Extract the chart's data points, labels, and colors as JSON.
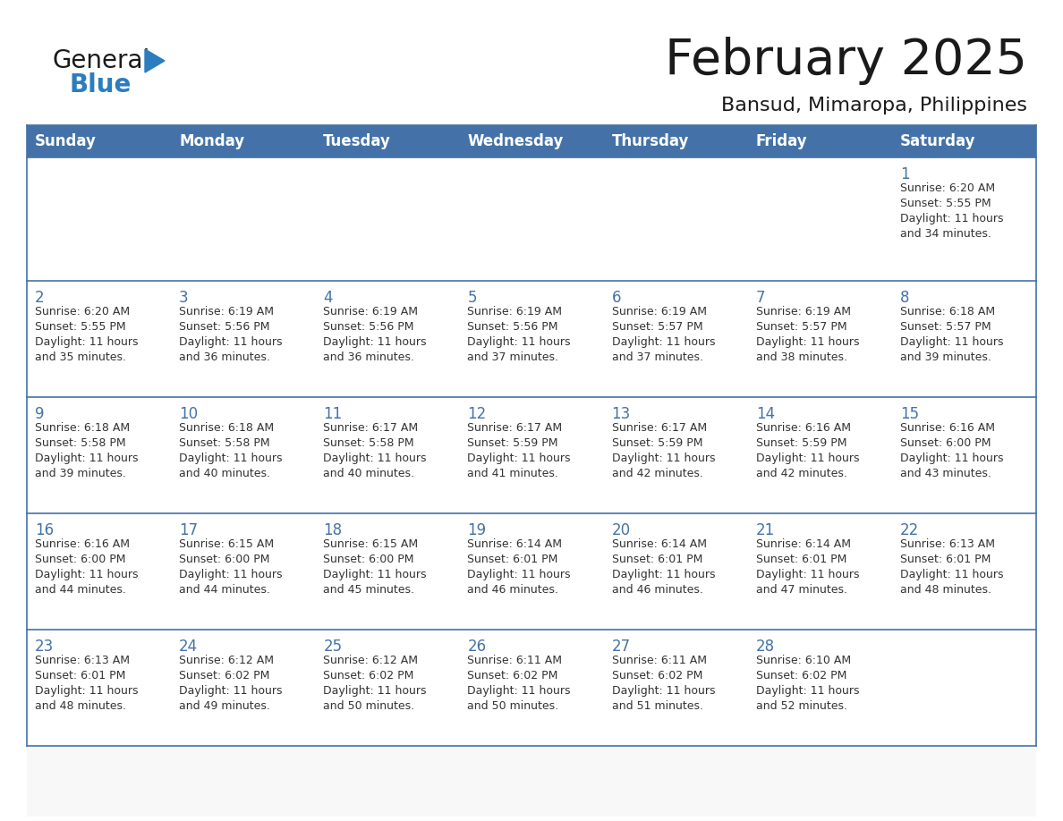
{
  "title": "February 2025",
  "subtitle": "Bansud, Mimaropa, Philippines",
  "days_of_week": [
    "Sunday",
    "Monday",
    "Tuesday",
    "Wednesday",
    "Thursday",
    "Friday",
    "Saturday"
  ],
  "header_bg": "#4472a8",
  "header_text": "#ffffff",
  "cell_bg_white": "#ffffff",
  "cell_bg_gray": "#f0f0f0",
  "border_color": "#4472a8",
  "row_line_color": "#4472a8",
  "text_color": "#333333",
  "day_number_color": "#4472a8",
  "calendar_data": [
    [
      null,
      null,
      null,
      null,
      null,
      null,
      {
        "day": 1,
        "sunrise": "6:20 AM",
        "sunset": "5:55 PM",
        "daylight": "11 hours\nand 34 minutes."
      }
    ],
    [
      {
        "day": 2,
        "sunrise": "6:20 AM",
        "sunset": "5:55 PM",
        "daylight": "11 hours\nand 35 minutes."
      },
      {
        "day": 3,
        "sunrise": "6:19 AM",
        "sunset": "5:56 PM",
        "daylight": "11 hours\nand 36 minutes."
      },
      {
        "day": 4,
        "sunrise": "6:19 AM",
        "sunset": "5:56 PM",
        "daylight": "11 hours\nand 36 minutes."
      },
      {
        "day": 5,
        "sunrise": "6:19 AM",
        "sunset": "5:56 PM",
        "daylight": "11 hours\nand 37 minutes."
      },
      {
        "day": 6,
        "sunrise": "6:19 AM",
        "sunset": "5:57 PM",
        "daylight": "11 hours\nand 37 minutes."
      },
      {
        "day": 7,
        "sunrise": "6:19 AM",
        "sunset": "5:57 PM",
        "daylight": "11 hours\nand 38 minutes."
      },
      {
        "day": 8,
        "sunrise": "6:18 AM",
        "sunset": "5:57 PM",
        "daylight": "11 hours\nand 39 minutes."
      }
    ],
    [
      {
        "day": 9,
        "sunrise": "6:18 AM",
        "sunset": "5:58 PM",
        "daylight": "11 hours\nand 39 minutes."
      },
      {
        "day": 10,
        "sunrise": "6:18 AM",
        "sunset": "5:58 PM",
        "daylight": "11 hours\nand 40 minutes."
      },
      {
        "day": 11,
        "sunrise": "6:17 AM",
        "sunset": "5:58 PM",
        "daylight": "11 hours\nand 40 minutes."
      },
      {
        "day": 12,
        "sunrise": "6:17 AM",
        "sunset": "5:59 PM",
        "daylight": "11 hours\nand 41 minutes."
      },
      {
        "day": 13,
        "sunrise": "6:17 AM",
        "sunset": "5:59 PM",
        "daylight": "11 hours\nand 42 minutes."
      },
      {
        "day": 14,
        "sunrise": "6:16 AM",
        "sunset": "5:59 PM",
        "daylight": "11 hours\nand 42 minutes."
      },
      {
        "day": 15,
        "sunrise": "6:16 AM",
        "sunset": "6:00 PM",
        "daylight": "11 hours\nand 43 minutes."
      }
    ],
    [
      {
        "day": 16,
        "sunrise": "6:16 AM",
        "sunset": "6:00 PM",
        "daylight": "11 hours\nand 44 minutes."
      },
      {
        "day": 17,
        "sunrise": "6:15 AM",
        "sunset": "6:00 PM",
        "daylight": "11 hours\nand 44 minutes."
      },
      {
        "day": 18,
        "sunrise": "6:15 AM",
        "sunset": "6:00 PM",
        "daylight": "11 hours\nand 45 minutes."
      },
      {
        "day": 19,
        "sunrise": "6:14 AM",
        "sunset": "6:01 PM",
        "daylight": "11 hours\nand 46 minutes."
      },
      {
        "day": 20,
        "sunrise": "6:14 AM",
        "sunset": "6:01 PM",
        "daylight": "11 hours\nand 46 minutes."
      },
      {
        "day": 21,
        "sunrise": "6:14 AM",
        "sunset": "6:01 PM",
        "daylight": "11 hours\nand 47 minutes."
      },
      {
        "day": 22,
        "sunrise": "6:13 AM",
        "sunset": "6:01 PM",
        "daylight": "11 hours\nand 48 minutes."
      }
    ],
    [
      {
        "day": 23,
        "sunrise": "6:13 AM",
        "sunset": "6:01 PM",
        "daylight": "11 hours\nand 48 minutes."
      },
      {
        "day": 24,
        "sunrise": "6:12 AM",
        "sunset": "6:02 PM",
        "daylight": "11 hours\nand 49 minutes."
      },
      {
        "day": 25,
        "sunrise": "6:12 AM",
        "sunset": "6:02 PM",
        "daylight": "11 hours\nand 50 minutes."
      },
      {
        "day": 26,
        "sunrise": "6:11 AM",
        "sunset": "6:02 PM",
        "daylight": "11 hours\nand 50 minutes."
      },
      {
        "day": 27,
        "sunrise": "6:11 AM",
        "sunset": "6:02 PM",
        "daylight": "11 hours\nand 51 minutes."
      },
      {
        "day": 28,
        "sunrise": "6:10 AM",
        "sunset": "6:02 PM",
        "daylight": "11 hours\nand 52 minutes."
      },
      null
    ]
  ],
  "logo_text_general": "General",
  "logo_text_blue": "Blue",
  "logo_color_general": "#1a1a1a",
  "logo_color_blue": "#2b7dc0",
  "logo_triangle_color": "#2b7dc0",
  "title_fontsize": 40,
  "subtitle_fontsize": 16,
  "header_fontsize": 12,
  "day_num_fontsize": 12,
  "cell_fontsize": 9
}
